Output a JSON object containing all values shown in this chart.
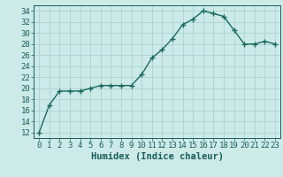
{
  "x": [
    0,
    1,
    2,
    3,
    4,
    5,
    6,
    7,
    8,
    9,
    10,
    11,
    12,
    13,
    14,
    15,
    16,
    17,
    18,
    19,
    20,
    21,
    22,
    23
  ],
  "y": [
    12,
    17,
    19.5,
    19.5,
    19.5,
    20,
    20.5,
    20.5,
    20.5,
    20.5,
    22.5,
    25.5,
    27,
    29,
    31.5,
    32.5,
    34,
    33.5,
    33,
    30.5,
    28,
    28,
    28.5,
    28
  ],
  "line_color": "#1a6b5e",
  "marker": "+",
  "marker_color": "#1a6b5e",
  "xlabel": "Humidex (Indice chaleur)",
  "xlim": [
    -0.5,
    23.5
  ],
  "ylim": [
    11,
    35
  ],
  "yticks": [
    12,
    14,
    16,
    18,
    20,
    22,
    24,
    26,
    28,
    30,
    32,
    34
  ],
  "xticks": [
    0,
    1,
    2,
    3,
    4,
    5,
    6,
    7,
    8,
    9,
    10,
    11,
    12,
    13,
    14,
    15,
    16,
    17,
    18,
    19,
    20,
    21,
    22,
    23
  ],
  "background_color": "#cceae7",
  "grid_color": "#aad4d0",
  "tick_label_color": "#1a5c5c",
  "axis_color": "#1a5c5c",
  "xlabel_fontsize": 7.5,
  "tick_fontsize": 6.5,
  "line_width": 1.0,
  "marker_size": 4.5
}
